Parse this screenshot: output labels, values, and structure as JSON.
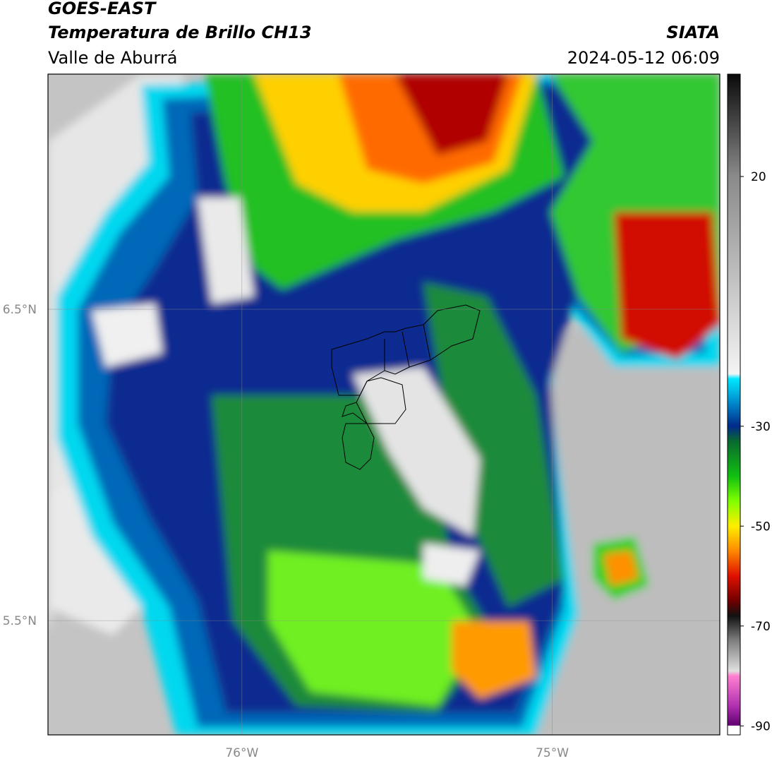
{
  "header": {
    "title": "GOES-EAST",
    "subtitle": "Temperatura de Brillo CH13",
    "region": "Valle de Aburrá",
    "source": "SIATA",
    "timestamp": "2024-05-12 06:09"
  },
  "map": {
    "lat_lim": [
      5.133,
      7.255
    ],
    "lon_lim": [
      -76.625,
      -74.46
    ],
    "lat_ticks": [
      {
        "value": 6.5,
        "label": "6.5°N"
      },
      {
        "value": 5.5,
        "label": "5.5°N"
      }
    ],
    "lon_ticks": [
      {
        "value": -76,
        "label": "76°W"
      },
      {
        "value": -75,
        "label": "75°W"
      }
    ],
    "grid": true
  },
  "colorbar": {
    "lim": [
      -91.8,
      40.5
    ],
    "ticks": [
      20,
      -30,
      -50,
      -70,
      -90
    ],
    "colormap": [
      {
        "value": 40.5,
        "color": "#0a0a0a"
      },
      {
        "value": 20,
        "color": "#8a8a8a"
      },
      {
        "value": -19.5,
        "color": "#f4f4f4"
      },
      {
        "value": -20.5,
        "color": "#00e8ff"
      },
      {
        "value": -25,
        "color": "#0090d0"
      },
      {
        "value": -30,
        "color": "#002a8a"
      },
      {
        "value": -33,
        "color": "#0a6a30"
      },
      {
        "value": -40,
        "color": "#10c010"
      },
      {
        "value": -45,
        "color": "#80ff00"
      },
      {
        "value": -50,
        "color": "#ffee00"
      },
      {
        "value": -55,
        "color": "#ff8800"
      },
      {
        "value": -60,
        "color": "#e01000"
      },
      {
        "value": -65,
        "color": "#700000"
      },
      {
        "value": -68,
        "color": "#111111"
      },
      {
        "value": -73,
        "color": "#808080"
      },
      {
        "value": -79,
        "color": "#e0e0e0"
      },
      {
        "value": -80,
        "color": "#ff80d0"
      },
      {
        "value": -86,
        "color": "#b030b0"
      },
      {
        "value": -89.9,
        "color": "#600070"
      },
      {
        "value": -90,
        "color": "#ffffff"
      },
      {
        "value": -91.8,
        "color": "#ffffff"
      }
    ]
  }
}
